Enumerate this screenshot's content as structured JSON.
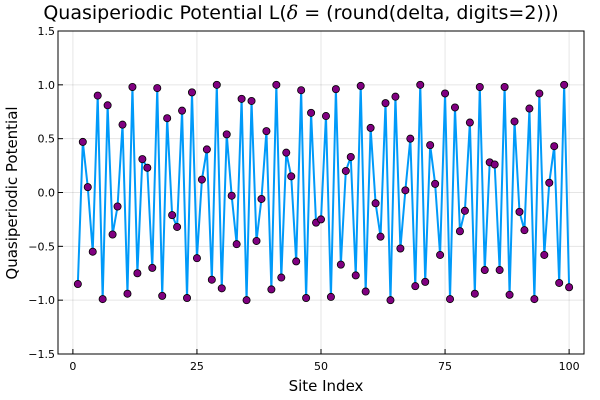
{
  "chart_data": {
    "type": "line",
    "title_prefix": "Quasiperiodic Potential L(",
    "title_symbol": "δ",
    "title_suffix": " = (round(delta, digits=2)))",
    "xlabel": "Site Index",
    "ylabel": "Quasiperiodic Potential",
    "xlim": [
      -3,
      103
    ],
    "ylim": [
      -1.5,
      1.5
    ],
    "xticks": [
      0,
      25,
      50,
      75,
      100
    ],
    "yticks": [
      -1.5,
      -1.0,
      -0.5,
      0.0,
      0.5,
      1.0,
      1.5
    ],
    "ytick_labels": [
      "−1.5",
      "−1.0",
      "−0.5",
      "0.0",
      "0.5",
      "1.0",
      "1.5"
    ],
    "grid": true,
    "legend": "none",
    "line_color": "#009af9",
    "marker_color": "#800080",
    "x": [
      1,
      2,
      3,
      4,
      5,
      6,
      7,
      8,
      9,
      10,
      11,
      12,
      13,
      14,
      15,
      16,
      17,
      18,
      19,
      20,
      21,
      22,
      23,
      24,
      25,
      26,
      27,
      28,
      29,
      30,
      31,
      32,
      33,
      34,
      35,
      36,
      37,
      38,
      39,
      40,
      41,
      42,
      43,
      44,
      45,
      46,
      47,
      48,
      49,
      50,
      51,
      52,
      53,
      54,
      55,
      56,
      57,
      58,
      59,
      60,
      61,
      62,
      63,
      64,
      65,
      66,
      67,
      68,
      69,
      70,
      71,
      72,
      73,
      74,
      75,
      76,
      77,
      78,
      79,
      80,
      81,
      82,
      83,
      84,
      85,
      86,
      87,
      88,
      89,
      90,
      91,
      92,
      93,
      94,
      95,
      96,
      97,
      98,
      99,
      100
    ],
    "y": [
      -0.85,
      0.47,
      0.05,
      -0.55,
      0.9,
      -0.99,
      0.81,
      -0.39,
      -0.13,
      0.63,
      -0.94,
      0.98,
      -0.75,
      0.31,
      0.23,
      -0.7,
      0.97,
      -0.96,
      0.69,
      -0.21,
      -0.32,
      0.76,
      -0.98,
      0.93,
      -0.61,
      0.12,
      0.4,
      -0.81,
      1.0,
      -0.89,
      0.54,
      -0.03,
      -0.48,
      0.87,
      -1.0,
      0.85,
      -0.45,
      -0.06,
      0.57,
      -0.9,
      1.0,
      -0.79,
      0.37,
      0.15,
      -0.64,
      0.95,
      -0.98,
      0.74,
      -0.28,
      -0.25,
      0.71,
      -0.97,
      0.96,
      -0.67,
      0.2,
      0.33,
      -0.77,
      0.99,
      -0.92,
      0.6,
      -0.1,
      -0.41,
      0.83,
      -1.0,
      0.89,
      -0.52,
      0.02,
      0.5,
      -0.87,
      1.0,
      -0.83,
      0.44,
      0.08,
      -0.58,
      0.92,
      -0.99,
      0.79,
      -0.36,
      -0.17,
      0.65,
      -0.94,
      0.98,
      -0.72,
      0.28,
      0.26,
      -0.72,
      0.98,
      -0.95,
      0.66,
      -0.18,
      -0.35,
      0.78,
      -0.99,
      0.92,
      -0.58,
      0.09,
      0.43,
      -0.84,
      1.0,
      -0.88
    ]
  }
}
